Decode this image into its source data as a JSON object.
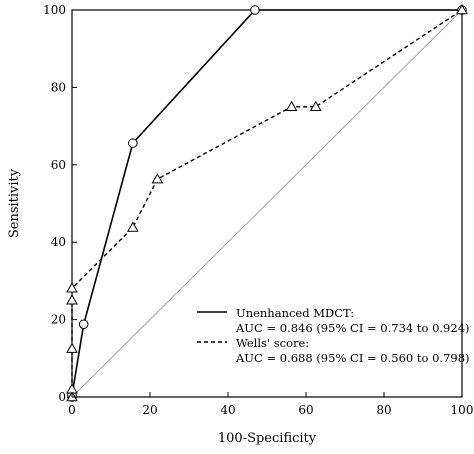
{
  "chart_data": {
    "type": "line",
    "xlabel": "100-Specificity",
    "ylabel": "Sensitivity",
    "xlim": [
      0,
      100
    ],
    "ylim": [
      0,
      100
    ],
    "x_ticks": [
      "0",
      "20",
      "40",
      "60",
      "80",
      "100"
    ],
    "y_ticks": [
      "0",
      "20",
      "40",
      "60",
      "80",
      "100"
    ],
    "grid": false,
    "legend_position": "bottom-right",
    "reference_line": {
      "x": [
        0,
        100
      ],
      "y": [
        0,
        100
      ],
      "color": "#9a9a9a"
    },
    "series": [
      {
        "name": "Unenhanced MDCT:",
        "auc_label": "AUC = 0.846 (95% CI = 0.734 to 0.924)",
        "line_style": "solid",
        "marker": "circle",
        "color": "#000000",
        "x": [
          0,
          0,
          3,
          15.6,
          46.9,
          100
        ],
        "y": [
          0,
          0.5,
          18.8,
          65.6,
          100,
          100
        ]
      },
      {
        "name": "Wells' score:",
        "auc_label": "AUC = 0.688 (95% CI = 0.560 to 0.798)",
        "line_style": "dashed",
        "marker": "triangle",
        "color": "#000000",
        "x": [
          0,
          0,
          0,
          0,
          0,
          15.6,
          21.9,
          56.3,
          62.5,
          100
        ],
        "y": [
          0,
          2,
          12.5,
          25,
          28.1,
          43.8,
          56.3,
          75,
          75,
          100
        ]
      }
    ]
  }
}
